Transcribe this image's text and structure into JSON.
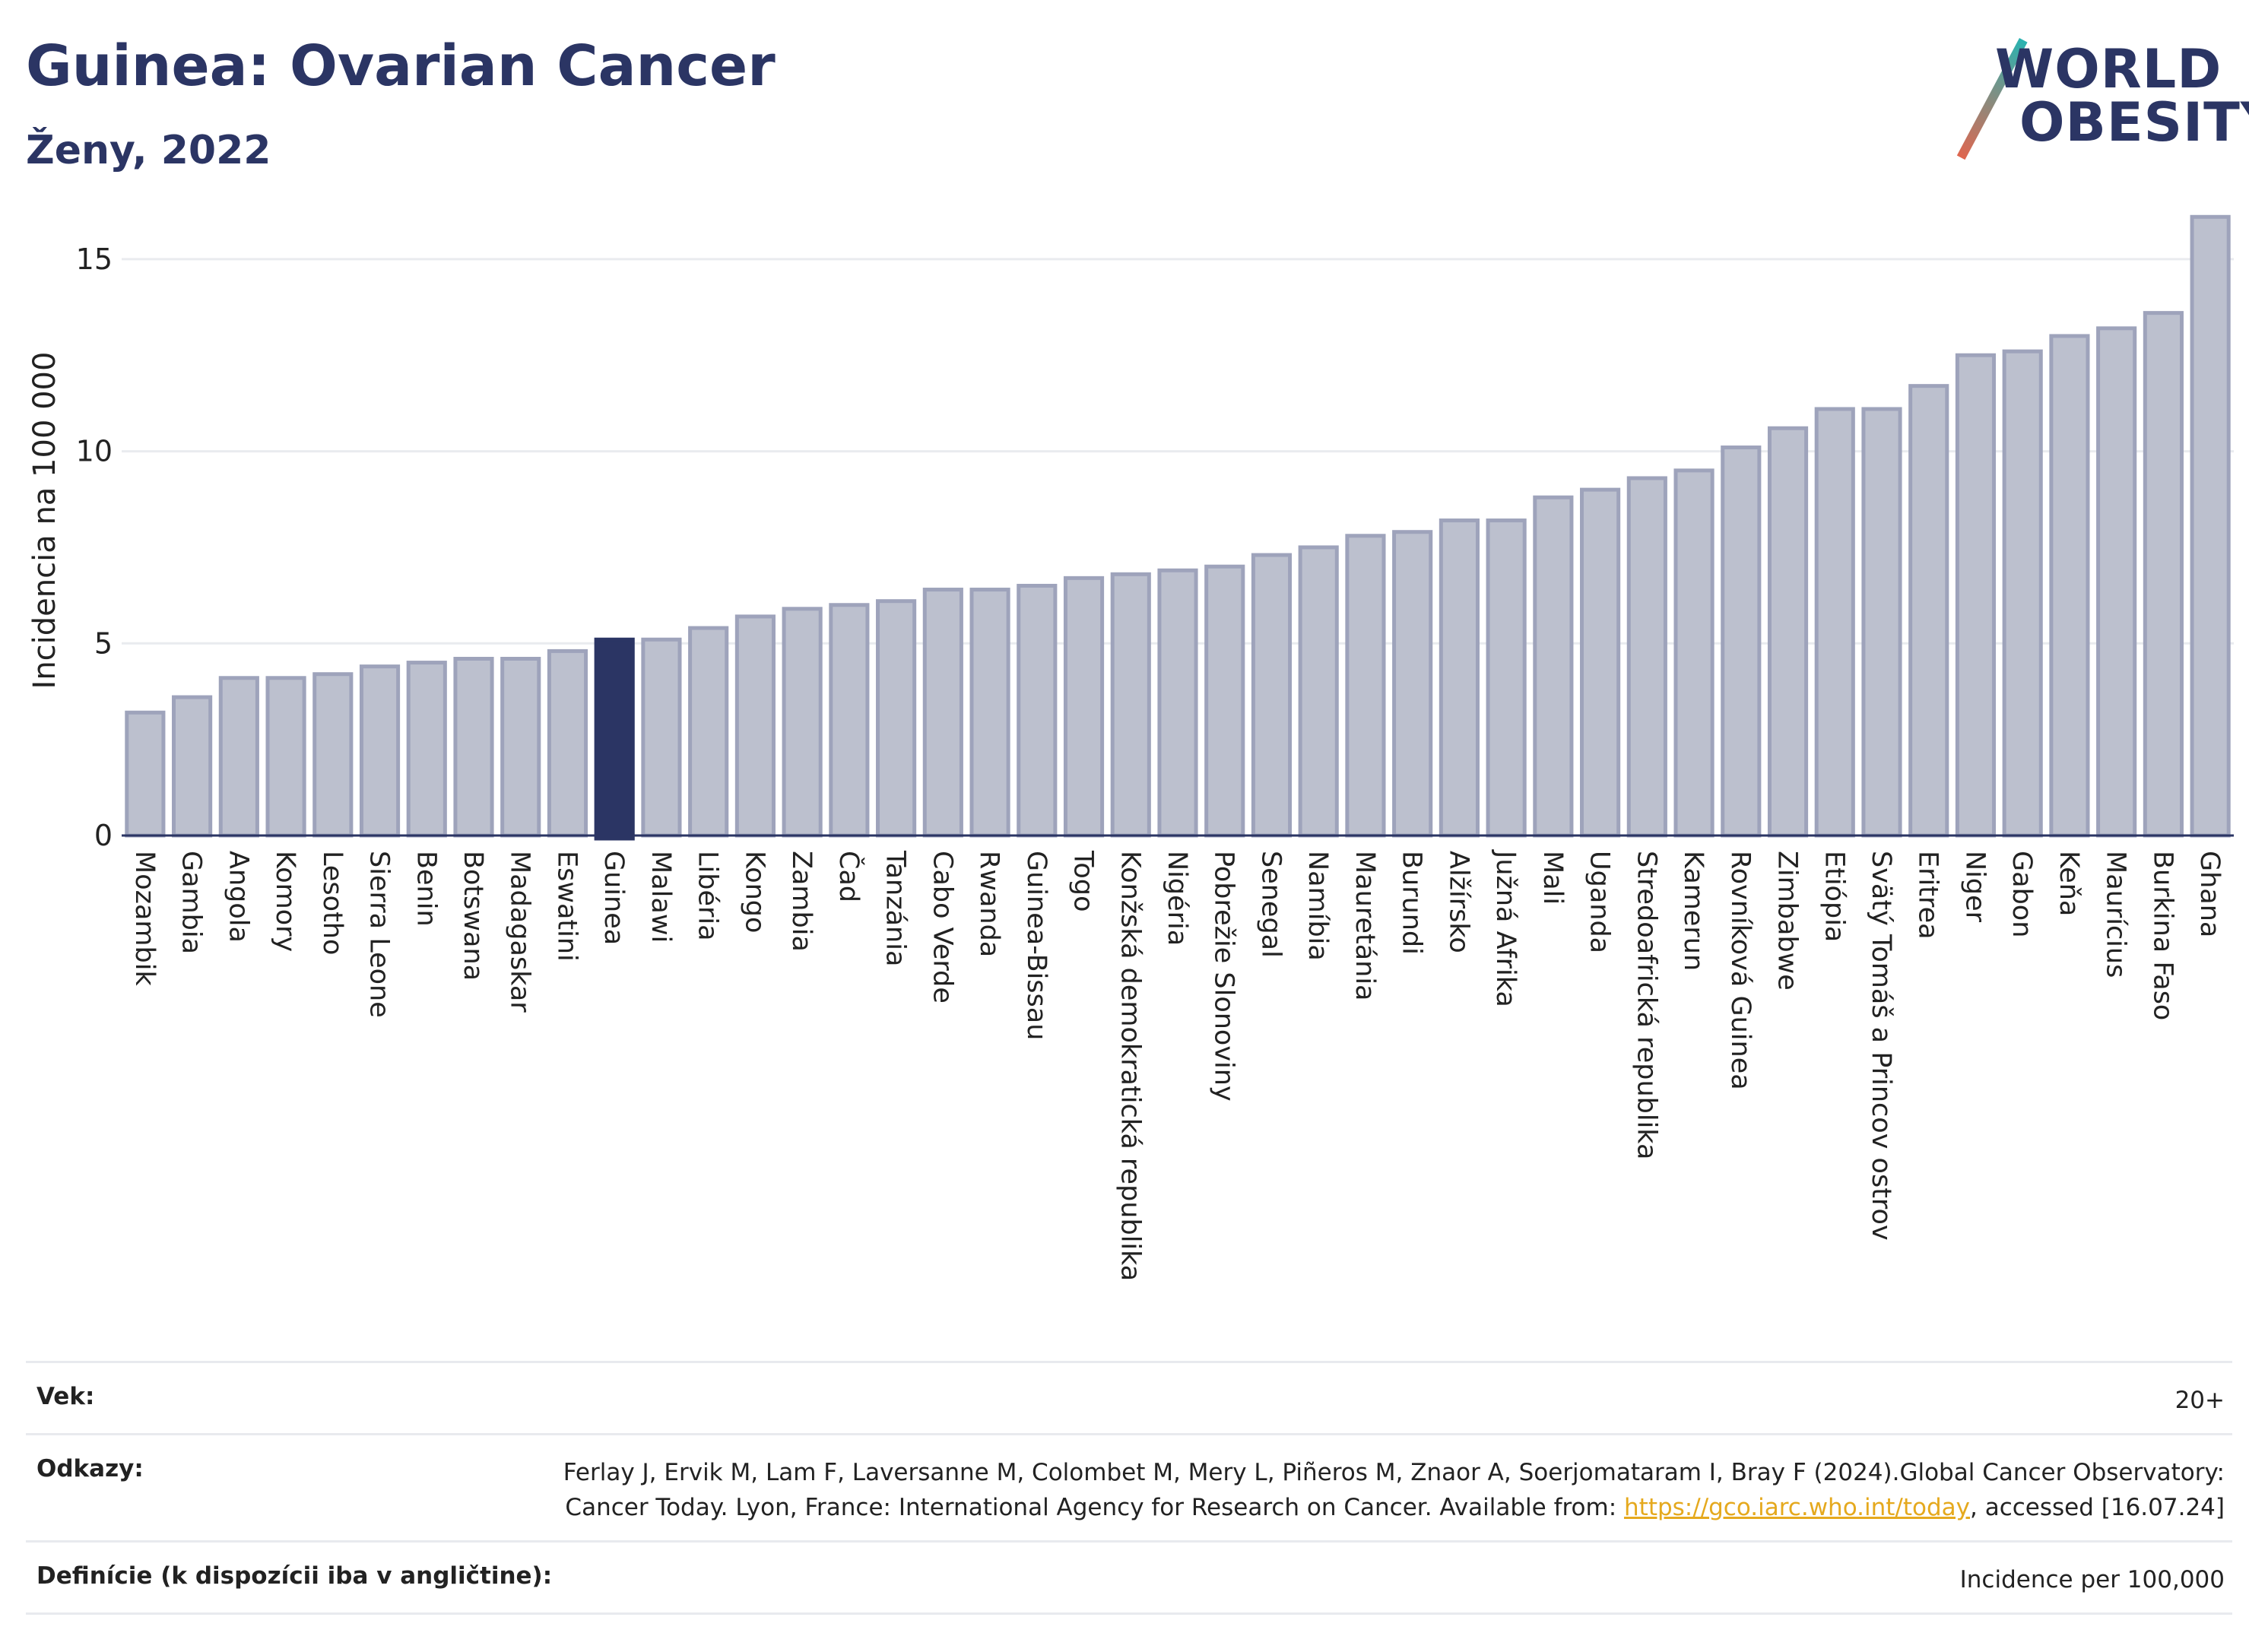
{
  "title": "Guinea: Ovarian Cancer",
  "subtitle": "Ženy, 2022",
  "logo": {
    "line1": "WORLD",
    "line2": "OBESITY"
  },
  "colors": {
    "highlight": "#2b3564",
    "bar": "#bcc0ce",
    "bar_stroke": "#9ea3bb",
    "text": "#2b3564",
    "link": "#e5a91e"
  },
  "chart_data": {
    "type": "bar",
    "title": "Guinea: Ovarian Cancer",
    "subtitle": "Ženy, 2022",
    "ylabel": "Incidencia na 100 000",
    "xlabel": "",
    "ylim": [
      0,
      16.6
    ],
    "yticks": [
      0,
      5,
      10,
      15
    ],
    "grid": true,
    "highlight": "Guinea",
    "categories": [
      "Mozambik",
      "Gambia",
      "Angola",
      "Komory",
      "Lesotho",
      "Sierra Leone",
      "Benin",
      "Botswana",
      "Madagaskar",
      "Eswatini",
      "Guinea",
      "Malawi",
      "Libéria",
      "Kongo",
      "Zambia",
      "Čad",
      "Tanzánia",
      "Cabo Verde",
      "Rwanda",
      "Guinea-Bissau",
      "Togo",
      "Konžská demokratická republika",
      "Nigéria",
      "Pobrežie Slonoviny",
      "Senegal",
      "Namíbia",
      "Mauretánia",
      "Burundi",
      "Alžírsko",
      "Južná Afrika",
      "Mali",
      "Uganda",
      "Stredoafrická republika",
      "Kamerun",
      "Rovníková Guinea",
      "Zimbabwe",
      "Etiópia",
      "Svätý Tomáš a Princov ostrov",
      "Eritrea",
      "Niger",
      "Gabon",
      "Keňa",
      "Maurícius",
      "Burkina Faso",
      "Ghana"
    ],
    "values": [
      3.2,
      3.6,
      4.1,
      4.1,
      4.2,
      4.4,
      4.5,
      4.6,
      4.6,
      4.8,
      5.1,
      5.1,
      5.4,
      5.7,
      5.9,
      6.0,
      6.1,
      6.4,
      6.4,
      6.5,
      6.7,
      6.8,
      6.9,
      7.0,
      7.3,
      7.5,
      7.8,
      7.9,
      8.2,
      8.2,
      8.8,
      9.0,
      9.3,
      9.5,
      10.1,
      10.6,
      11.1,
      11.1,
      11.7,
      12.5,
      12.6,
      13.0,
      13.2,
      13.6,
      16.1
    ]
  },
  "footer": {
    "age_label": "Vek:",
    "age_value": "20+",
    "refs_label": "Odkazy:",
    "refs_text_1": "Ferlay J, Ervik M, Lam F, Laversanne M, Colombet M, Mery L, Piñeros M, Znaor A, Soerjomataram I, Bray F (2024).Global Cancer Observatory: Cancer Today. Lyon, France: International Agency for Research on Cancer. Available from: ",
    "refs_link": "https://gco.iarc.who.int/today",
    "refs_text_2": ", accessed [16.07.24]",
    "def_label": "Definície (k dispozícii iba v angličtine):",
    "def_value": "Incidence per 100,000"
  }
}
